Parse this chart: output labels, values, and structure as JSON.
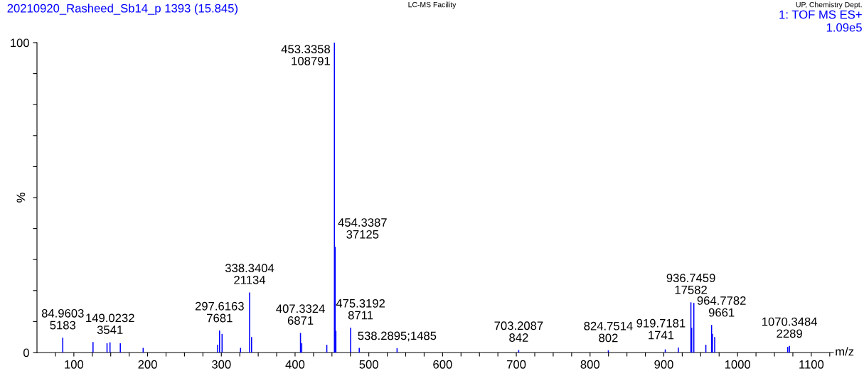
{
  "chart_data": {
    "type": "bar",
    "title": "20210920_Rasheed_Sb14_p 1393 (15.845)",
    "xlabel": "m/z",
    "ylabel": "%",
    "x": [
      84.9603,
      126,
      145,
      149.0232,
      163,
      194,
      295,
      297.6163,
      301,
      326,
      338.3404,
      341,
      407.3324,
      409,
      443,
      453.3358,
      454.3387,
      455.3,
      475.3192,
      487,
      538.2895,
      703.2087,
      824.7514,
      902,
      919.7181,
      936.7459,
      937.8,
      940.7,
      957,
      964.7782,
      966,
      969,
      1068,
      1070.3484
    ],
    "values": [
      4.8,
      3.4,
      3.0,
      3.3,
      3.0,
      1.5,
      2.5,
      7.1,
      6.0,
      1.5,
      19.4,
      5.0,
      6.3,
      3.0,
      2.5,
      100,
      34.1,
      7.0,
      8.0,
      1.5,
      1.4,
      0.8,
      0.7,
      1.0,
      1.6,
      16.2,
      8.0,
      16.0,
      2.5,
      8.9,
      6.0,
      5.0,
      1.8,
      2.1
    ],
    "color": "#0000ff",
    "xlim": [
      50,
      1130
    ],
    "ylim": [
      0,
      100
    ],
    "xticks": [
      {
        "value": 75,
        "label": null
      },
      100,
      {
        "value": 125,
        "label": null
      },
      {
        "value": 150,
        "label": null
      },
      {
        "value": 175,
        "label": null
      },
      200,
      {
        "value": 225,
        "label": null
      },
      {
        "value": 250,
        "label": null
      },
      {
        "value": 275,
        "label": null
      },
      300,
      {
        "value": 325,
        "label": null
      },
      {
        "value": 350,
        "label": null
      },
      {
        "value": 375,
        "label": null
      },
      400,
      {
        "value": 425,
        "label": null
      },
      {
        "value": 450,
        "label": null
      },
      {
        "value": 475,
        "label": null
      },
      500,
      {
        "value": 525,
        "label": null
      },
      {
        "value": 550,
        "label": null
      },
      {
        "value": 575,
        "label": null
      },
      600,
      {
        "value": 625,
        "label": null
      },
      {
        "value": 650,
        "label": null
      },
      {
        "value": 675,
        "label": null
      },
      700,
      {
        "value": 725,
        "label": null
      },
      {
        "value": 750,
        "label": null
      },
      {
        "value": 775,
        "label": null
      },
      800,
      {
        "value": 825,
        "label": null
      },
      {
        "value": 850,
        "label": null
      },
      {
        "value": 875,
        "label": null
      },
      900,
      {
        "value": 925,
        "label": null
      },
      {
        "value": 950,
        "label": null
      },
      {
        "value": 975,
        "label": null
      },
      1000,
      {
        "value": 1025,
        "label": null
      },
      {
        "value": 1050,
        "label": null
      },
      {
        "value": 1075,
        "label": null
      },
      1100,
      {
        "value": 1125,
        "label": null
      }
    ],
    "yticks": [
      0,
      {
        "value": 10,
        "label": null
      },
      {
        "value": 20,
        "label": null
      },
      {
        "value": 30,
        "label": null
      },
      {
        "value": 40,
        "label": null
      },
      {
        "value": 50,
        "label": null
      },
      {
        "value": 60,
        "label": null
      },
      {
        "value": 70,
        "label": null
      },
      {
        "value": 80,
        "label": null
      },
      {
        "value": 90,
        "label": null
      },
      100
    ],
    "annotations": [
      "LC-MS Facility",
      "UP, Chemistry Dept.",
      "1: TOF MS ES+",
      "1.09e5",
      {
        "text": "453.3358\n108791",
        "x": 453.3358,
        "y": 100
      },
      {
        "text": "454.3387\n37125",
        "x": 454.3387,
        "y": 34.1
      },
      {
        "text": "338.3404\n21134",
        "x": 338.3404,
        "y": 19.4
      },
      {
        "text": "936.7459\n17582",
        "x": 936.7459,
        "y": 16.2
      },
      {
        "text": "964.7782\n9661",
        "x": 964.7782,
        "y": 8.9
      },
      {
        "text": "475.3192\n8711",
        "x": 475.3192,
        "y": 8.0
      },
      {
        "text": "297.6163\n7681",
        "x": 297.6163,
        "y": 7.1
      },
      {
        "text": "407.3324\n6871",
        "x": 407.3324,
        "y": 6.3
      },
      {
        "text": "84.9603\n5183",
        "x": 84.9603,
        "y": 4.8
      },
      {
        "text": "149.0232\n3541",
        "x": 149.0232,
        "y": 3.3
      },
      {
        "text": "1070.3484\n2289",
        "x": 1070.3484,
        "y": 2.1
      },
      {
        "text": "919.7181\n1741",
        "x": 919.7181,
        "y": 1.6
      },
      {
        "text": "538.2895;1485",
        "x": 538.2895,
        "y": 1.4
      },
      {
        "text": "703.2087\n842",
        "x": 703.2087,
        "y": 0.8
      },
      {
        "text": "824.7514\n802",
        "x": 824.7514,
        "y": 0.7
      }
    ],
    "grid": false
  }
}
